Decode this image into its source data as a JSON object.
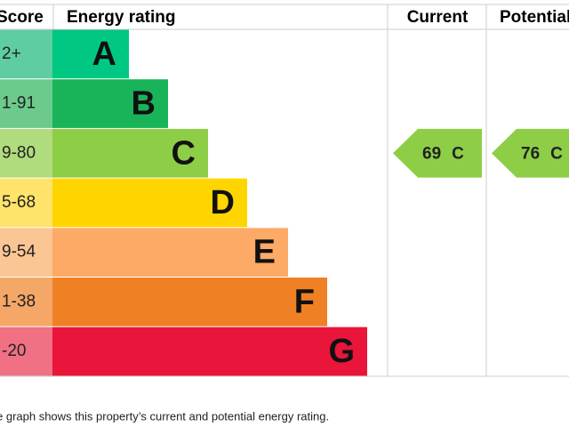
{
  "header": {
    "score": "Score",
    "rating": "Energy rating",
    "current": "Current",
    "potential": "Potential"
  },
  "bands": [
    {
      "score": "2+",
      "letter": "A",
      "color": "#00c781",
      "tint": "#5fcda2"
    },
    {
      "score": "1-91",
      "letter": "B",
      "color": "#19b459",
      "tint": "#6ccb8c"
    },
    {
      "score": "9-80",
      "letter": "C",
      "color": "#8dce46",
      "tint": "#b0dc7d"
    },
    {
      "score": "5-68",
      "letter": "D",
      "color": "#ffd500",
      "tint": "#ffe36b"
    },
    {
      "score": "9-54",
      "letter": "E",
      "color": "#fcaa65",
      "tint": "#fcc594"
    },
    {
      "score": "1-38",
      "letter": "F",
      "color": "#ef8023",
      "tint": "#f4a767"
    },
    {
      "score": "-20",
      "letter": "G",
      "color": "#e9153b",
      "tint": "#f07084"
    }
  ],
  "current": {
    "value": 69,
    "letter": "C"
  },
  "potential": {
    "value": 76,
    "letter": "C"
  },
  "footnote": "e graph shows this property’s current and potential energy rating."
}
